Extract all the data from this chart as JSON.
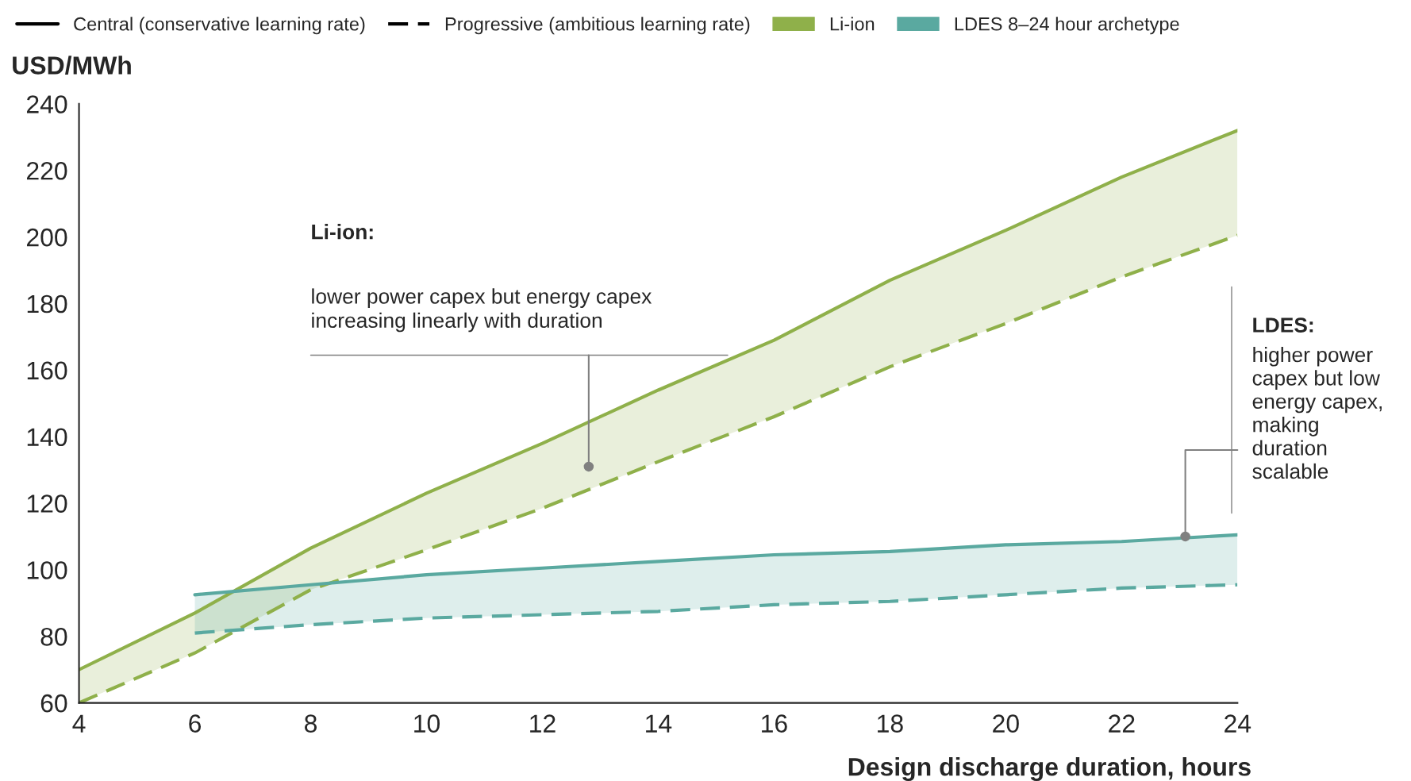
{
  "chart_data": {
    "type": "line",
    "xlabel": "Design discharge duration, hours",
    "ylabel": "USD/MWh",
    "x": [
      4,
      6,
      8,
      10,
      12,
      14,
      16,
      18,
      20,
      22,
      24
    ],
    "xlim": [
      4,
      24
    ],
    "xticks": [
      4,
      6,
      8,
      10,
      12,
      14,
      16,
      18,
      20,
      22,
      24
    ],
    "ylim": [
      60,
      240
    ],
    "yticks": [
      60,
      80,
      100,
      120,
      140,
      160,
      180,
      200,
      220,
      240
    ],
    "grid": false,
    "legend": "top",
    "marker": "none",
    "series": [
      {
        "name": "Li-ion",
        "color": "#8fb04a",
        "line_style": "solid",
        "values": [
          70,
          87,
          106.5,
          123,
          138,
          154,
          169,
          187,
          202,
          218,
          232
        ],
        "lower": [
          60,
          75,
          94,
          106,
          118.5,
          132.5,
          146,
          161,
          174,
          188,
          200.5
        ],
        "upper": [
          70,
          87,
          106.5,
          123,
          138,
          154,
          169,
          187,
          202,
          218,
          232
        ]
      },
      {
        "color": "#8fb04a",
        "line_style": "dashed",
        "values": [
          60,
          75,
          94,
          106,
          118.5,
          132.5,
          146,
          161,
          174,
          188,
          200.5
        ]
      },
      {
        "name": "LDES 8–24 hour archetype",
        "color": "#5aa9a0",
        "line_style": "solid",
        "values": [
          null,
          92.5,
          95.5,
          98.5,
          100.5,
          102.5,
          104.5,
          105.5,
          107.5,
          108.5,
          110.5
        ],
        "lower": [
          null,
          81,
          83.5,
          85.5,
          86.5,
          87.5,
          89.5,
          90.5,
          92.5,
          94.5,
          95.5
        ],
        "upper": [
          null,
          92.5,
          95.5,
          98.5,
          100.5,
          102.5,
          104.5,
          105.5,
          107.5,
          108.5,
          110.5
        ]
      },
      {
        "color": "#5aa9a0",
        "line_style": "dashed",
        "values": [
          null,
          81,
          83.5,
          85.5,
          86.5,
          87.5,
          89.5,
          90.5,
          92.5,
          94.5,
          95.5
        ]
      }
    ],
    "annotations": [
      "Central (conservative learning rate)",
      "Progressive (ambitious learning rate)",
      "Li-ion:",
      {
        "text": "lower power capex but energy capex\nincreasing linearly with duration",
        "x": 12.8,
        "y": 131
      },
      "LDES:",
      {
        "text": "higher power\ncapex but low\nenergy capex,\nmaking\nduration\nscalable",
        "x": 23.1,
        "y": 110
      }
    ]
  }
}
